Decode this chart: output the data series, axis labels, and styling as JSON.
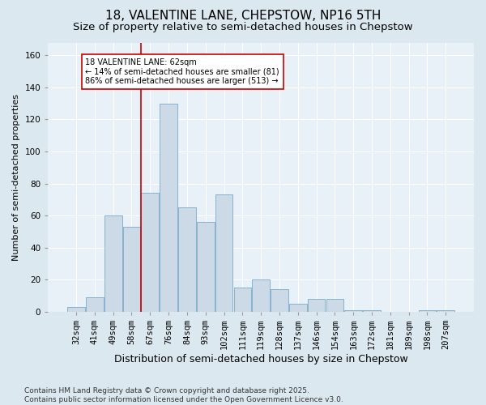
{
  "title1": "18, VALENTINE LANE, CHEPSTOW, NP16 5TH",
  "title2": "Size of property relative to semi-detached houses in Chepstow",
  "xlabel": "Distribution of semi-detached houses by size in Chepstow",
  "ylabel": "Number of semi-detached properties",
  "categories": [
    "32sqm",
    "41sqm",
    "49sqm",
    "58sqm",
    "67sqm",
    "76sqm",
    "84sqm",
    "93sqm",
    "102sqm",
    "111sqm",
    "119sqm",
    "128sqm",
    "137sqm",
    "146sqm",
    "154sqm",
    "163sqm",
    "172sqm",
    "181sqm",
    "189sqm",
    "198sqm",
    "207sqm"
  ],
  "values": [
    3,
    9,
    60,
    53,
    74,
    130,
    65,
    56,
    73,
    15,
    20,
    14,
    5,
    8,
    8,
    1,
    1,
    0,
    0,
    1,
    1
  ],
  "bar_color": "#ccdae8",
  "bar_edge_color": "#7aaac8",
  "vline_x": 3.5,
  "vline_color": "#cc0000",
  "annotation_text": "18 VALENTINE LANE: 62sqm\n← 14% of semi-detached houses are smaller (81)\n86% of semi-detached houses are larger (513) →",
  "annotation_box_color": "#ffffff",
  "annotation_box_edge": "#cc0000",
  "ylim": [
    0,
    168
  ],
  "yticks": [
    0,
    20,
    40,
    60,
    80,
    100,
    120,
    140,
    160
  ],
  "footnote": "Contains HM Land Registry data © Crown copyright and database right 2025.\nContains public sector information licensed under the Open Government Licence v3.0.",
  "bg_color": "#dce8f0",
  "plot_bg_color": "#e8f0f8",
  "grid_color": "#ffffff",
  "title1_fontsize": 11,
  "title2_fontsize": 9.5,
  "xlabel_fontsize": 9,
  "ylabel_fontsize": 8,
  "tick_fontsize": 7.5,
  "footnote_fontsize": 6.5
}
